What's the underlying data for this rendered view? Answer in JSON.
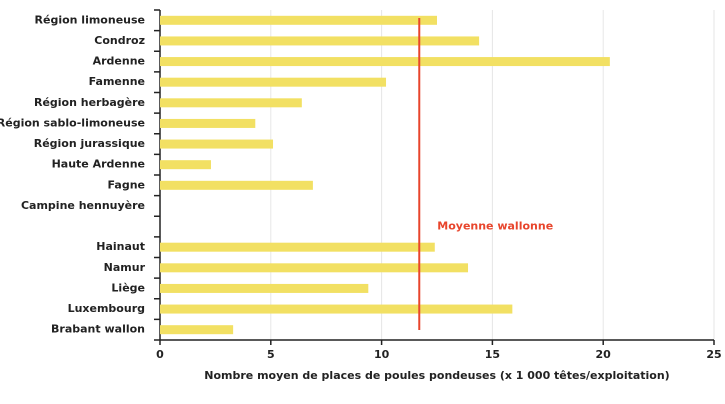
{
  "chart_data": {
    "type": "hbar",
    "xlabel": "Nombre moyen de places de poules pondeuses (x 1 000 têtes/exploitation)",
    "categories": [
      "Région limoneuse",
      "Condroz",
      "Ardenne",
      "Famenne",
      "Région herbagère",
      "Région sablo-limoneuse",
      "Région jurassique",
      "Haute Ardenne",
      "Fagne",
      "Campine hennuyère",
      null,
      "Hainaut",
      "Namur",
      "Liège",
      "Luxembourg",
      "Brabant wallon"
    ],
    "values": [
      12.5,
      14.4,
      20.3,
      10.2,
      6.4,
      4.3,
      5.1,
      2.3,
      6.9,
      null,
      null,
      12.4,
      13.9,
      9.4,
      15.9,
      3.3
    ],
    "color": "#f2e063",
    "xlim": [
      0,
      25
    ],
    "xticks": [
      0,
      5,
      10,
      15,
      20,
      25
    ],
    "grid": true,
    "reference_line": {
      "value": 11.7,
      "label": "Moyenne wallonne",
      "color": "#e8452c"
    }
  }
}
